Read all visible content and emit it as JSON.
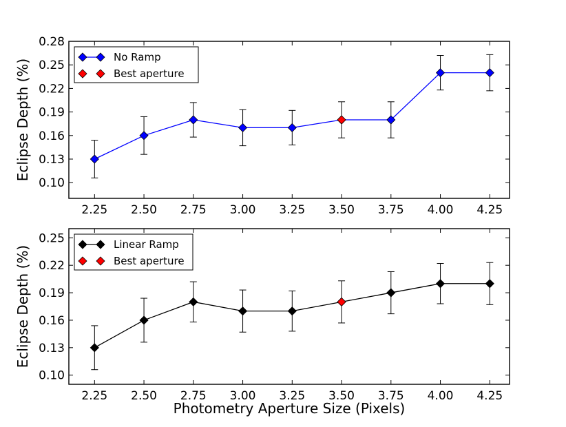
{
  "figure": {
    "xlabel": "Photometry Aperture Size (Pixels)"
  },
  "chart_data": [
    {
      "type": "line",
      "title": "",
      "xlabel": "",
      "ylabel": "Eclipse Depth (%)",
      "xlim": [
        2.12,
        4.35
      ],
      "ylim": [
        0.08,
        0.28
      ],
      "xticks": [
        "2.25",
        "2.50",
        "2.75",
        "3.00",
        "3.25",
        "3.50",
        "3.75",
        "4.00",
        "4.25"
      ],
      "yticks": [
        "0.10",
        "0.13",
        "0.16",
        "0.19",
        "0.22",
        "0.25",
        "0.28"
      ],
      "legend_position": "top-left",
      "series": [
        {
          "name": "No Ramp",
          "color": "#0000ff",
          "marker_color": "#0000ff",
          "x": [
            2.25,
            2.5,
            2.75,
            3.0,
            3.25,
            3.5,
            3.75,
            4.0,
            4.25
          ],
          "y": [
            0.13,
            0.16,
            0.18,
            0.17,
            0.17,
            0.18,
            0.18,
            0.24,
            0.24
          ],
          "yerr": [
            0.024,
            0.024,
            0.022,
            0.023,
            0.022,
            0.023,
            0.023,
            0.022,
            0.023
          ]
        },
        {
          "name": "Best aperture",
          "color": "#ff0000",
          "marker_color": "#ff0000",
          "x": [
            3.5
          ],
          "y": [
            0.18
          ]
        }
      ]
    },
    {
      "type": "line",
      "title": "",
      "xlabel": "",
      "ylabel": "Eclipse Depth (%)",
      "xlim": [
        2.12,
        4.35
      ],
      "ylim": [
        0.09,
        0.26
      ],
      "xticks": [
        "2.25",
        "2.50",
        "2.75",
        "3.00",
        "3.25",
        "3.50",
        "3.75",
        "4.00",
        "4.25"
      ],
      "yticks": [
        "0.10",
        "0.13",
        "0.16",
        "0.19",
        "0.22",
        "0.25"
      ],
      "legend_position": "top-left",
      "series": [
        {
          "name": "Linear Ramp",
          "color": "#000000",
          "marker_color": "#000000",
          "x": [
            2.25,
            2.5,
            2.75,
            3.0,
            3.25,
            3.5,
            3.75,
            4.0,
            4.25
          ],
          "y": [
            0.13,
            0.16,
            0.18,
            0.17,
            0.17,
            0.18,
            0.19,
            0.2,
            0.2
          ],
          "yerr": [
            0.024,
            0.024,
            0.022,
            0.023,
            0.022,
            0.023,
            0.023,
            0.022,
            0.023
          ]
        },
        {
          "name": "Best aperture",
          "color": "#ff0000",
          "marker_color": "#ff0000",
          "x": [
            3.5
          ],
          "y": [
            0.18
          ]
        }
      ]
    }
  ]
}
